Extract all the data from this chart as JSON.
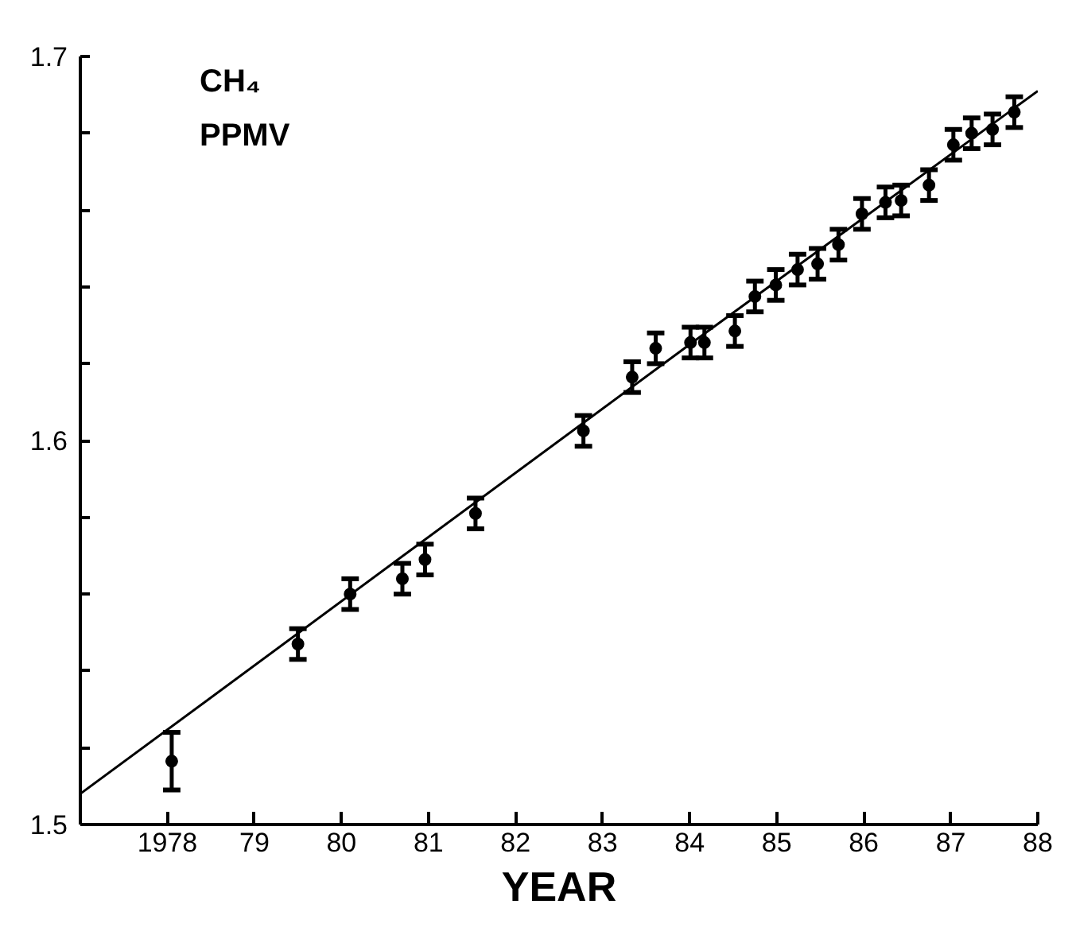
{
  "chart_data": {
    "type": "scatter",
    "ylabel": "CH₄\nPPMV",
    "xlabel": "YEAR",
    "xlim": [
      1977,
      1988
    ],
    "ylim": [
      1.5,
      1.7
    ],
    "xticks": [
      {
        "value": 1978,
        "label": "1978"
      },
      {
        "value": 1979,
        "label": "79"
      },
      {
        "value": 1980,
        "label": "80"
      },
      {
        "value": 1981,
        "label": "81"
      },
      {
        "value": 1982,
        "label": "82"
      },
      {
        "value": 1983,
        "label": "83"
      },
      {
        "value": 1984,
        "label": "84"
      },
      {
        "value": 1985,
        "label": "85"
      },
      {
        "value": 1986,
        "label": "86"
      },
      {
        "value": 1987,
        "label": "87"
      },
      {
        "value": 1988,
        "label": "88"
      }
    ],
    "yticks": [
      {
        "value": 1.5,
        "label": "1.5"
      },
      {
        "value": 1.52,
        "label": null
      },
      {
        "value": 1.54,
        "label": null
      },
      {
        "value": 1.56,
        "label": null
      },
      {
        "value": 1.58,
        "label": null
      },
      {
        "value": 1.6,
        "label": "1.6"
      },
      {
        "value": 1.62,
        "label": null
      },
      {
        "value": 1.64,
        "label": null
      },
      {
        "value": 1.66,
        "label": null
      },
      {
        "value": 1.68,
        "label": null
      },
      {
        "value": 1.7,
        "label": "1.7"
      }
    ],
    "grid": false,
    "series": [
      {
        "marker": "circle",
        "color": "#000000",
        "x": [
          1978.05,
          1979.5,
          1980.1,
          1980.7,
          1980.96,
          1981.54,
          1982.78,
          1983.34,
          1983.61,
          1984.01,
          1984.17,
          1984.52,
          1984.75,
          1984.99,
          1985.24,
          1985.47,
          1985.71,
          1985.98,
          1986.25,
          1986.43,
          1986.75,
          1987.03,
          1987.24,
          1987.48,
          1987.73
        ],
        "values": [
          1.5165,
          1.547,
          1.56,
          1.564,
          1.569,
          1.581,
          1.6025,
          1.6165,
          1.624,
          1.6255,
          1.6255,
          1.6285,
          1.6375,
          1.6405,
          1.6445,
          1.646,
          1.651,
          1.659,
          1.662,
          1.6625,
          1.6665,
          1.677,
          1.68,
          1.681,
          1.6855
        ],
        "errors": [
          0.0075,
          0.004,
          0.004,
          0.004,
          0.004,
          0.004,
          0.004,
          0.004,
          0.004,
          0.004,
          0.004,
          0.004,
          0.004,
          0.004,
          0.004,
          0.004,
          0.004,
          0.004,
          0.004,
          0.004,
          0.004,
          0.004,
          0.004,
          0.004,
          0.004
        ]
      },
      {
        "type": "line",
        "marker": "none",
        "color": "#000000",
        "line_style": "solid",
        "x": [
          1977,
          1984,
          1988
        ],
        "values": [
          1.508,
          1.625,
          1.691
        ]
      }
    ]
  }
}
